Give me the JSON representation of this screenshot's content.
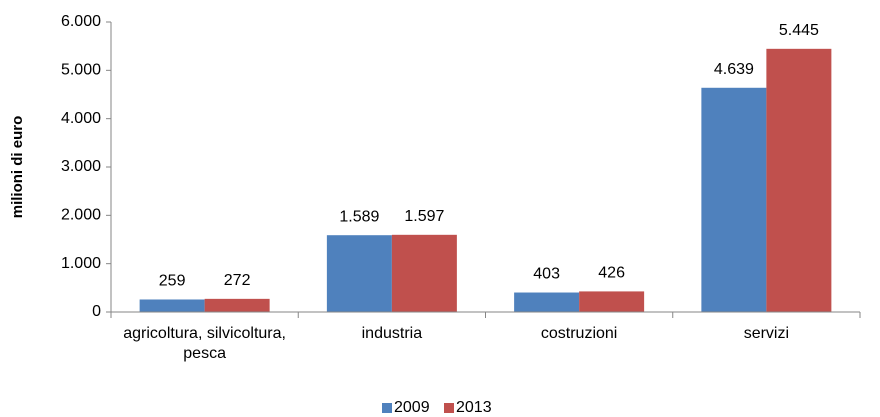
{
  "chart_data": {
    "type": "bar",
    "ylabel": "milioni di euro",
    "categories": [
      "agricoltura, silvicoltura, pesca",
      "industria",
      "costruzioni",
      "servizi"
    ],
    "series": [
      {
        "name": "2009",
        "color": "#4f81bd",
        "values": [
          259,
          1589,
          403,
          4639
        ],
        "value_labels": [
          "259",
          "1.589",
          "403",
          "4.639"
        ]
      },
      {
        "name": "2013",
        "color": "#c0504d",
        "values": [
          272,
          1597,
          426,
          5445
        ],
        "value_labels": [
          "272",
          "1.597",
          "426",
          "5.445"
        ]
      }
    ],
    "ylim": [
      0,
      6000
    ],
    "yticks": [
      0,
      {
        "value": 1000,
        "label": "1.000"
      },
      {
        "value": 2000,
        "label": "2.000"
      },
      {
        "value": 3000,
        "label": "3.000"
      },
      {
        "value": 4000,
        "label": "4.000"
      },
      {
        "value": 5000,
        "label": "5.000"
      },
      {
        "value": 6000,
        "label": "6.000"
      }
    ],
    "legend": "bottom"
  }
}
